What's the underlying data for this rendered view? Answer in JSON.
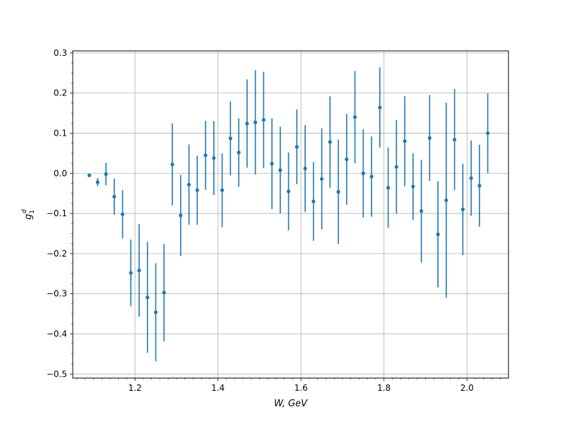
{
  "chart_data": {
    "type": "scatter",
    "title": "",
    "xlabel": "W, GeV",
    "ylabel": "g1d",
    "ylabel_parts": {
      "base": "g",
      "sub": "1",
      "sup": "d"
    },
    "xlim": [
      1.05,
      2.1
    ],
    "ylim": [
      -0.51,
      0.305
    ],
    "grid": true,
    "marker_color": "#1f77b4",
    "x_ticks": [
      {
        "value": 1.2,
        "label": "1.2"
      },
      {
        "value": 1.4,
        "label": "1.4"
      },
      {
        "value": 1.6,
        "label": "1.6"
      },
      {
        "value": 1.8,
        "label": "1.8"
      },
      {
        "value": 2.0,
        "label": "2.0"
      }
    ],
    "y_ticks": [
      {
        "value": 0.3,
        "label": "0.3"
      },
      {
        "value": 0.2,
        "label": "0.2"
      },
      {
        "value": 0.1,
        "label": "0.1"
      },
      {
        "value": 0.0,
        "label": "0.0"
      },
      {
        "value": -0.1,
        "label": "−0.1"
      },
      {
        "value": -0.2,
        "label": "−0.2"
      },
      {
        "value": -0.3,
        "label": "−0.3"
      },
      {
        "value": -0.4,
        "label": "−0.4"
      },
      {
        "value": -0.5,
        "label": "−0.5"
      }
    ],
    "series": [
      {
        "points": [
          {
            "x": 1.09,
            "y": -0.005,
            "err": 0.003
          },
          {
            "x": 1.11,
            "y": -0.022,
            "err": 0.01
          },
          {
            "x": 1.13,
            "y": -0.002,
            "err": 0.028
          },
          {
            "x": 1.15,
            "y": -0.058,
            "err": 0.045
          },
          {
            "x": 1.17,
            "y": -0.102,
            "err": 0.06
          },
          {
            "x": 1.19,
            "y": -0.248,
            "err": 0.083
          },
          {
            "x": 1.21,
            "y": -0.242,
            "err": 0.115
          },
          {
            "x": 1.23,
            "y": -0.309,
            "err": 0.138
          },
          {
            "x": 1.25,
            "y": -0.346,
            "err": 0.122
          },
          {
            "x": 1.27,
            "y": -0.297,
            "err": 0.121
          },
          {
            "x": 1.29,
            "y": 0.022,
            "err": 0.102
          },
          {
            "x": 1.31,
            "y": -0.105,
            "err": 0.101
          },
          {
            "x": 1.33,
            "y": -0.028,
            "err": 0.1
          },
          {
            "x": 1.35,
            "y": -0.042,
            "err": 0.086
          },
          {
            "x": 1.37,
            "y": 0.045,
            "err": 0.086
          },
          {
            "x": 1.39,
            "y": 0.038,
            "err": 0.092
          },
          {
            "x": 1.41,
            "y": -0.042,
            "err": 0.092
          },
          {
            "x": 1.43,
            "y": 0.087,
            "err": 0.092
          },
          {
            "x": 1.45,
            "y": 0.052,
            "err": 0.085
          },
          {
            "x": 1.47,
            "y": 0.124,
            "err": 0.11
          },
          {
            "x": 1.49,
            "y": 0.127,
            "err": 0.13
          },
          {
            "x": 1.51,
            "y": 0.133,
            "err": 0.12
          },
          {
            "x": 1.53,
            "y": 0.024,
            "err": 0.113
          },
          {
            "x": 1.55,
            "y": 0.008,
            "err": 0.108
          },
          {
            "x": 1.57,
            "y": -0.045,
            "err": 0.097
          },
          {
            "x": 1.59,
            "y": 0.066,
            "err": 0.093
          },
          {
            "x": 1.61,
            "y": 0.012,
            "err": 0.108
          },
          {
            "x": 1.63,
            "y": -0.07,
            "err": 0.098
          },
          {
            "x": 1.65,
            "y": -0.014,
            "err": 0.126
          },
          {
            "x": 1.67,
            "y": 0.078,
            "err": 0.114
          },
          {
            "x": 1.69,
            "y": -0.046,
            "err": 0.13
          },
          {
            "x": 1.71,
            "y": 0.035,
            "err": 0.113
          },
          {
            "x": 1.73,
            "y": 0.14,
            "err": 0.115
          },
          {
            "x": 1.75,
            "y": 0.0,
            "err": 0.11
          },
          {
            "x": 1.77,
            "y": -0.008,
            "err": 0.1
          },
          {
            "x": 1.79,
            "y": 0.164,
            "err": 0.1
          },
          {
            "x": 1.81,
            "y": -0.036,
            "err": 0.1
          },
          {
            "x": 1.83,
            "y": 0.016,
            "err": 0.117
          },
          {
            "x": 1.85,
            "y": 0.08,
            "err": 0.112
          },
          {
            "x": 1.87,
            "y": -0.033,
            "err": 0.083
          },
          {
            "x": 1.89,
            "y": -0.094,
            "err": 0.128
          },
          {
            "x": 1.91,
            "y": 0.088,
            "err": 0.107
          },
          {
            "x": 1.93,
            "y": -0.152,
            "err": 0.132
          },
          {
            "x": 1.95,
            "y": -0.067,
            "err": 0.243
          },
          {
            "x": 1.97,
            "y": 0.084,
            "err": 0.126
          },
          {
            "x": 1.99,
            "y": -0.09,
            "err": 0.114
          },
          {
            "x": 2.01,
            "y": -0.012,
            "err": 0.094
          },
          {
            "x": 2.03,
            "y": -0.031,
            "err": 0.102
          },
          {
            "x": 2.05,
            "y": 0.1,
            "err": 0.099
          }
        ]
      }
    ]
  }
}
